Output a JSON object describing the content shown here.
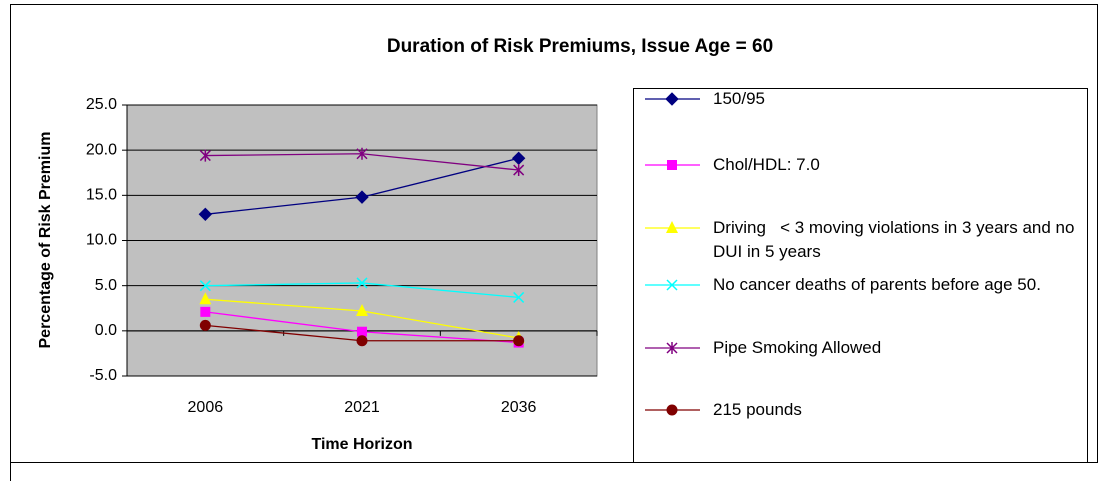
{
  "chart_data": {
    "type": "line",
    "title": "Duration of Risk Premiums, Issue Age = 60",
    "y_label": "Percentage of Risk Premium",
    "x_label": "Time Horizon",
    "categories": [
      "2006",
      "2021",
      "2036"
    ],
    "series": [
      {
        "name": "150/95",
        "color": "#000080",
        "marker": "diamond",
        "values": [
          12.9,
          14.8,
          19.1
        ]
      },
      {
        "name": "Chol/HDL: 7.0",
        "color": "#ff00ff",
        "marker": "square",
        "values": [
          2.1,
          -0.1,
          -1.3
        ]
      },
      {
        "name": "Driving   < 3 moving violations in 3 years and no DUI in 5 years",
        "color": "#ffff00",
        "marker": "triangle",
        "values": [
          3.5,
          2.2,
          -0.8
        ]
      },
      {
        "name": "No cancer deaths of parents before age 50.",
        "color": "#00ffff",
        "marker": "x",
        "values": [
          5.0,
          5.3,
          3.7
        ]
      },
      {
        "name": "Pipe Smoking Allowed",
        "color": "#800080",
        "marker": "star",
        "values": [
          19.4,
          19.6,
          17.8
        ]
      },
      {
        "name": "215 pounds",
        "color": "#800000",
        "marker": "circle",
        "values": [
          0.6,
          -1.1,
          -1.1
        ]
      }
    ],
    "ylim": [
      -5,
      25
    ],
    "yticks": [
      {
        "value": -5,
        "label": "-5.0"
      },
      {
        "value": 0,
        "label": "0.0"
      },
      {
        "value": 5,
        "label": "5.0"
      },
      {
        "value": 10,
        "label": "10.0"
      },
      {
        "value": 15,
        "label": "15.0"
      },
      {
        "value": 20,
        "label": "20.0"
      },
      {
        "value": 25,
        "label": "25.0"
      }
    ],
    "grid": true,
    "plot_background": "#c0c0c0",
    "legend": "right"
  }
}
